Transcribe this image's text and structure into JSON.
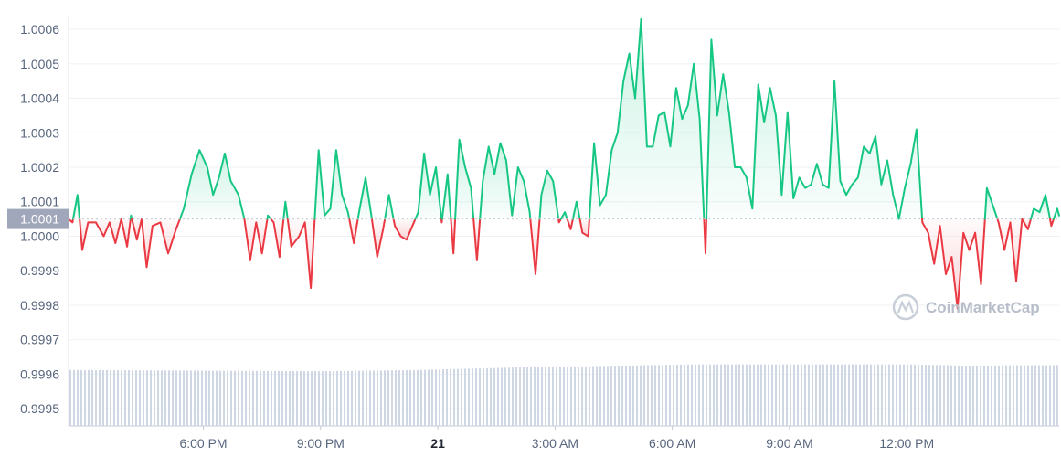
{
  "watermark": {
    "text": "CoinMarketCap"
  },
  "chart_data": {
    "type": "line",
    "title": "",
    "xlabel": "",
    "ylabel": "",
    "reference_price": 1.00005,
    "reference_label": "1.0001",
    "ylim": [
      0.99945,
      1.00064
    ],
    "yticks": [
      "1.0006",
      "1.0005",
      "1.0004",
      "1.0003",
      "1.0002",
      "1.0001",
      "1.0000",
      "0.9999",
      "0.9998",
      "0.9997",
      "0.9996",
      "0.9995"
    ],
    "ytick_values": [
      1.0006,
      1.0005,
      1.0004,
      1.0003,
      1.0002,
      1.0001,
      1.0,
      0.9999,
      0.9998,
      0.9997,
      0.9996,
      0.9995
    ],
    "xlim_hours": [
      -3.45,
      21.9
    ],
    "xticks": [
      {
        "label": "6:00 PM",
        "hour": 0,
        "bold": false
      },
      {
        "label": "9:00 PM",
        "hour": 3,
        "bold": false
      },
      {
        "label": "21",
        "hour": 6,
        "bold": true
      },
      {
        "label": "3:00 AM",
        "hour": 9,
        "bold": false
      },
      {
        "label": "6:00 AM",
        "hour": 12,
        "bold": false
      },
      {
        "label": "9:00 AM",
        "hour": 15,
        "bold": false
      },
      {
        "label": "12:00 PM",
        "hour": 18,
        "bold": false
      }
    ],
    "colors": {
      "above": "#16c784",
      "below": "#ea3943",
      "volume": "#cfd6e4",
      "grid": "#eff2f5",
      "reference": "#c4c9d3",
      "reference_label_bg": "#a1a7bb"
    },
    "grid": true,
    "volume_profile": [
      [
        -3.45,
        0.9
      ],
      [
        3.0,
        0.88
      ],
      [
        5.5,
        0.9
      ],
      [
        8.0,
        0.94
      ],
      [
        12.5,
        0.99
      ],
      [
        18.0,
        0.99
      ],
      [
        19.5,
        0.97
      ],
      [
        21.9,
        0.98
      ]
    ],
    "series": [
      {
        "values": [
          [
            -3.45,
            1.00005
          ],
          [
            -3.35,
            1.00004
          ],
          [
            -3.22,
            1.00012
          ],
          [
            -3.1,
            0.99996
          ],
          [
            -2.95,
            1.00004
          ],
          [
            -2.75,
            1.00004
          ],
          [
            -2.55,
            1.0
          ],
          [
            -2.4,
            1.00004
          ],
          [
            -2.25,
            0.99998
          ],
          [
            -2.1,
            1.00005
          ],
          [
            -1.95,
            0.99997
          ],
          [
            -1.85,
            1.00006
          ],
          [
            -1.7,
            0.99999
          ],
          [
            -1.58,
            1.00005
          ],
          [
            -1.45,
            0.99991
          ],
          [
            -1.3,
            1.00003
          ],
          [
            -1.1,
            1.00004
          ],
          [
            -0.9,
            0.99995
          ],
          [
            -0.7,
            1.00002
          ],
          [
            -0.5,
            1.00008
          ],
          [
            -0.3,
            1.00018
          ],
          [
            -0.1,
            1.00025
          ],
          [
            0.1,
            1.0002
          ],
          [
            0.25,
            1.00012
          ],
          [
            0.4,
            1.00017
          ],
          [
            0.55,
            1.00024
          ],
          [
            0.7,
            1.00016
          ],
          [
            0.9,
            1.00012
          ],
          [
            1.05,
            1.00005
          ],
          [
            1.2,
            0.99993
          ],
          [
            1.35,
            1.00004
          ],
          [
            1.5,
            0.99995
          ],
          [
            1.65,
            1.00006
          ],
          [
            1.8,
            1.00004
          ],
          [
            1.95,
            0.99994
          ],
          [
            2.1,
            1.0001
          ],
          [
            2.25,
            0.99997
          ],
          [
            2.45,
            1.0
          ],
          [
            2.6,
            1.00004
          ],
          [
            2.75,
            0.99985
          ],
          [
            2.95,
            1.00025
          ],
          [
            3.1,
            1.00006
          ],
          [
            3.25,
            1.00008
          ],
          [
            3.4,
            1.00025
          ],
          [
            3.55,
            1.00012
          ],
          [
            3.7,
            1.00007
          ],
          [
            3.85,
            0.99998
          ],
          [
            4.0,
            1.00008
          ],
          [
            4.15,
            1.00017
          ],
          [
            4.3,
            1.00006
          ],
          [
            4.45,
            0.99994
          ],
          [
            4.6,
            1.00002
          ],
          [
            4.75,
            1.00012
          ],
          [
            4.9,
            1.00003
          ],
          [
            5.05,
            1.0
          ],
          [
            5.2,
            0.99999
          ],
          [
            5.35,
            1.00003
          ],
          [
            5.5,
            1.00007
          ],
          [
            5.65,
            1.00024
          ],
          [
            5.8,
            1.00012
          ],
          [
            5.95,
            1.0002
          ],
          [
            6.1,
            1.00004
          ],
          [
            6.25,
            1.00018
          ],
          [
            6.4,
            0.99995
          ],
          [
            6.55,
            1.00028
          ],
          [
            6.7,
            1.0002
          ],
          [
            6.85,
            1.00014
          ],
          [
            7.0,
            0.99993
          ],
          [
            7.15,
            1.00016
          ],
          [
            7.3,
            1.00026
          ],
          [
            7.45,
            1.00018
          ],
          [
            7.6,
            1.00027
          ],
          [
            7.75,
            1.00022
          ],
          [
            7.9,
            1.00006
          ],
          [
            8.05,
            1.0002
          ],
          [
            8.2,
            1.00016
          ],
          [
            8.35,
            1.00007
          ],
          [
            8.5,
            0.99989
          ],
          [
            8.65,
            1.00012
          ],
          [
            8.8,
            1.00019
          ],
          [
            8.95,
            1.00016
          ],
          [
            9.1,
            1.00004
          ],
          [
            9.25,
            1.00007
          ],
          [
            9.4,
            1.00002
          ],
          [
            9.55,
            1.0001
          ],
          [
            9.7,
            1.00001
          ],
          [
            9.85,
            1.0
          ],
          [
            10.0,
            1.00027
          ],
          [
            10.15,
            1.00009
          ],
          [
            10.3,
            1.00012
          ],
          [
            10.45,
            1.00025
          ],
          [
            10.6,
            1.0003
          ],
          [
            10.75,
            1.00045
          ],
          [
            10.9,
            1.00053
          ],
          [
            11.05,
            1.0004
          ],
          [
            11.2,
            1.00063
          ],
          [
            11.35,
            1.00026
          ],
          [
            11.5,
            1.00026
          ],
          [
            11.65,
            1.00035
          ],
          [
            11.8,
            1.00036
          ],
          [
            11.95,
            1.00026
          ],
          [
            12.1,
            1.00043
          ],
          [
            12.25,
            1.00034
          ],
          [
            12.4,
            1.00038
          ],
          [
            12.55,
            1.0005
          ],
          [
            12.7,
            1.00034
          ],
          [
            12.85,
            0.99995
          ],
          [
            13.0,
            1.00057
          ],
          [
            13.15,
            1.00035
          ],
          [
            13.3,
            1.00047
          ],
          [
            13.45,
            1.00036
          ],
          [
            13.6,
            1.0002
          ],
          [
            13.75,
            1.0002
          ],
          [
            13.9,
            1.00017
          ],
          [
            14.05,
            1.00008
          ],
          [
            14.2,
            1.00044
          ],
          [
            14.35,
            1.00033
          ],
          [
            14.5,
            1.00043
          ],
          [
            14.65,
            1.00035
          ],
          [
            14.8,
            1.00012
          ],
          [
            14.95,
            1.00036
          ],
          [
            15.1,
            1.00011
          ],
          [
            15.25,
            1.00017
          ],
          [
            15.4,
            1.00014
          ],
          [
            15.55,
            1.00015
          ],
          [
            15.7,
            1.00021
          ],
          [
            15.85,
            1.00015
          ],
          [
            16.0,
            1.00014
          ],
          [
            16.15,
            1.00045
          ],
          [
            16.3,
            1.00016
          ],
          [
            16.45,
            1.00012
          ],
          [
            16.6,
            1.00015
          ],
          [
            16.75,
            1.00017
          ],
          [
            16.9,
            1.00026
          ],
          [
            17.05,
            1.00024
          ],
          [
            17.2,
            1.00029
          ],
          [
            17.35,
            1.00015
          ],
          [
            17.5,
            1.00022
          ],
          [
            17.65,
            1.00012
          ],
          [
            17.8,
            1.00005
          ],
          [
            17.95,
            1.00014
          ],
          [
            18.1,
            1.00021
          ],
          [
            18.25,
            1.00031
          ],
          [
            18.4,
            1.00004
          ],
          [
            18.55,
            1.00001
          ],
          [
            18.7,
            0.99992
          ],
          [
            18.85,
            1.00003
          ],
          [
            19.0,
            0.99989
          ],
          [
            19.15,
            0.99994
          ],
          [
            19.3,
            0.99979
          ],
          [
            19.45,
            1.00001
          ],
          [
            19.6,
            0.99996
          ],
          [
            19.75,
            1.00001
          ],
          [
            19.9,
            0.99986
          ],
          [
            20.05,
            1.00014
          ],
          [
            20.2,
            1.00009
          ],
          [
            20.35,
            1.00004
          ],
          [
            20.5,
            0.99996
          ],
          [
            20.65,
            1.00004
          ],
          [
            20.8,
            0.99987
          ],
          [
            20.95,
            1.00005
          ],
          [
            21.1,
            1.00002
          ],
          [
            21.25,
            1.00008
          ],
          [
            21.4,
            1.00007
          ],
          [
            21.55,
            1.00012
          ],
          [
            21.7,
            1.00003
          ],
          [
            21.85,
            1.00008
          ],
          [
            21.9,
            1.00006
          ]
        ]
      }
    ]
  }
}
